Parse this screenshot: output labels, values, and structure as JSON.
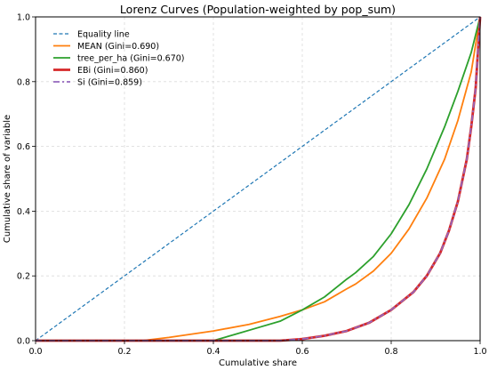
{
  "chart_data": {
    "type": "line",
    "title": "Lorenz Curves (Population-weighted by pop_sum)",
    "xlabel": "Cumulative share",
    "ylabel": "Cumulative share of variable",
    "xlim": [
      0,
      1
    ],
    "ylim": [
      0,
      1
    ],
    "x_ticks": [
      "0.0",
      "0.2",
      "0.4",
      "0.6",
      "0.8",
      "1.0"
    ],
    "y_ticks": [
      "0.0",
      "0.2",
      "0.4",
      "0.6",
      "0.8",
      "1.0"
    ],
    "grid": true,
    "legend_position": "top-left",
    "series": [
      {
        "name": "Equality line",
        "color": "#1f77b4",
        "style": "dashed",
        "points": [
          [
            0,
            0
          ],
          [
            1,
            1
          ]
        ]
      },
      {
        "name": "MEAN (Gini=0.690)",
        "color": "#ff7f0e",
        "style": "solid",
        "points": [
          [
            0,
            0
          ],
          [
            0.24,
            0
          ],
          [
            0.3,
            0.01
          ],
          [
            0.4,
            0.03
          ],
          [
            0.48,
            0.05
          ],
          [
            0.55,
            0.075
          ],
          [
            0.6,
            0.095
          ],
          [
            0.65,
            0.12
          ],
          [
            0.7,
            0.16
          ],
          [
            0.72,
            0.175
          ],
          [
            0.76,
            0.215
          ],
          [
            0.8,
            0.27
          ],
          [
            0.84,
            0.345
          ],
          [
            0.88,
            0.44
          ],
          [
            0.92,
            0.56
          ],
          [
            0.95,
            0.68
          ],
          [
            0.98,
            0.83
          ],
          [
            1.0,
            1.0
          ]
        ]
      },
      {
        "name": "tree_per_ha (Gini=0.670)",
        "color": "#2ca02c",
        "style": "solid",
        "points": [
          [
            0,
            0
          ],
          [
            0.4,
            0
          ],
          [
            0.45,
            0.02
          ],
          [
            0.5,
            0.04
          ],
          [
            0.55,
            0.06
          ],
          [
            0.6,
            0.095
          ],
          [
            0.65,
            0.135
          ],
          [
            0.7,
            0.19
          ],
          [
            0.72,
            0.21
          ],
          [
            0.76,
            0.26
          ],
          [
            0.8,
            0.33
          ],
          [
            0.84,
            0.42
          ],
          [
            0.88,
            0.53
          ],
          [
            0.92,
            0.66
          ],
          [
            0.95,
            0.77
          ],
          [
            0.98,
            0.89
          ],
          [
            1.0,
            1.0
          ]
        ]
      },
      {
        "name": "EBi (Gini=0.860)",
        "color": "#d62728",
        "style": "solid-thick",
        "points": [
          [
            0,
            0
          ],
          [
            0.55,
            0
          ],
          [
            0.6,
            0.005
          ],
          [
            0.65,
            0.015
          ],
          [
            0.7,
            0.03
          ],
          [
            0.75,
            0.055
          ],
          [
            0.8,
            0.095
          ],
          [
            0.85,
            0.15
          ],
          [
            0.88,
            0.2
          ],
          [
            0.91,
            0.27
          ],
          [
            0.93,
            0.34
          ],
          [
            0.95,
            0.43
          ],
          [
            0.97,
            0.56
          ],
          [
            0.98,
            0.66
          ],
          [
            0.99,
            0.78
          ],
          [
            1.0,
            1.0
          ]
        ]
      },
      {
        "name": "Si (Gini=0.859)",
        "color": "#9467bd",
        "style": "dashdot",
        "points": [
          [
            0,
            0
          ],
          [
            0.55,
            0
          ],
          [
            0.6,
            0.005
          ],
          [
            0.65,
            0.015
          ],
          [
            0.7,
            0.03
          ],
          [
            0.75,
            0.055
          ],
          [
            0.8,
            0.095
          ],
          [
            0.85,
            0.15
          ],
          [
            0.88,
            0.2
          ],
          [
            0.91,
            0.27
          ],
          [
            0.93,
            0.34
          ],
          [
            0.95,
            0.43
          ],
          [
            0.97,
            0.56
          ],
          [
            0.98,
            0.66
          ],
          [
            0.99,
            0.78
          ],
          [
            1.0,
            1.0
          ]
        ]
      }
    ]
  }
}
